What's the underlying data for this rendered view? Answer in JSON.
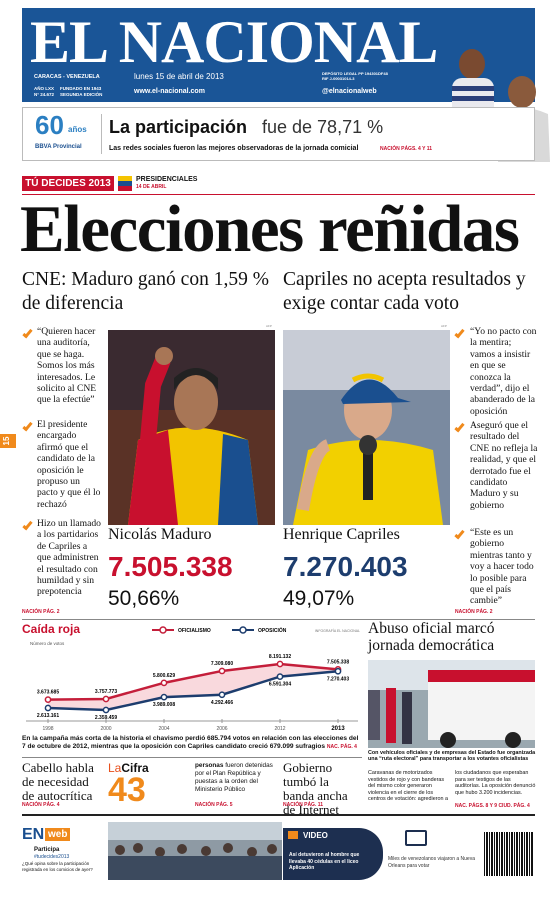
{
  "masthead": {
    "title": "EL NACIONAL",
    "city": "CARACAS - VENEZUELA",
    "date": "lunes 15 de abril de 2013",
    "website": "www.el-nacional.com",
    "twitter": "@elnacionalweb",
    "year_info": "AÑO LXX",
    "issue": "N° 24.672",
    "founded": "FUNDADO EN 1943",
    "edition": "SEGUNDA EDICIÓN",
    "legal": "DEPÓSITO LEGAL PP 194301DF48",
    "rif": "RIF J-00031014-3"
  },
  "banner": {
    "anniversary": "60",
    "anniversary_word": "años",
    "sponsor": "BBVA Provincial",
    "headline_bold": "La participación",
    "headline_rest": "fue de 78,71 %",
    "subhead": "Las redes sociales fueron las mejores observadoras de la jornada comicial",
    "ref": "NACIÓN PÁGS. 4 Y 11"
  },
  "section_tag": {
    "label": "TÚ DECIDES 2013",
    "kicker": "PRESIDENCIALES",
    "date": "14 DE ABRIL"
  },
  "side_tab": "15",
  "headline": "Elecciones reñidas",
  "photo_credit": "AFP",
  "left": {
    "subhead": "CNE: Maduro ganó con 1,59 % de diferencia",
    "bullets": [
      "“Quieren hacer una auditoría, que se haga. Somos los más interesados. Le solicito al CNE que la efectúe”",
      "El presidente encargado afirmó que el candidato de la oposición le propuso un pacto y que él lo rechazó",
      "Hizo un llamado a los partidarios de Capriles a que administren el resultado con humildad y sin prepotencia"
    ],
    "ref": "NACIÓN PÁG. 2",
    "candidate": "Nicolás Maduro",
    "votes": "7.505.338",
    "percent": "50,66%"
  },
  "right": {
    "subhead": "Capriles no acepta resultados y exige contar cada voto",
    "bullets": [
      "“Yo no pacto con la mentira; vamos a insistir en que se conozca la verdad”, dijo el abanderado de la oposición",
      "Aseguró que el resultado del CNE no refleja la realidad, y que el derrotado fue el candidato Maduro y su gobierno",
      "“Este es un gobierno mientras tanto y voy a hacer todo lo posible para que el país cambie”"
    ],
    "ref": "NACIÓN PÁG. 2",
    "candidate": "Henrique Capriles",
    "votes": "7.270.403",
    "percent": "49,07%"
  },
  "chart_data": {
    "type": "line",
    "title": "Caída roja",
    "y_label": "Número de votos",
    "credit": "INFOGRAFÍA EL NACIONAL",
    "categories": [
      "1998",
      "2000",
      "2004",
      "2006",
      "2012",
      "2013"
    ],
    "series": [
      {
        "name": "OFICIALISMO",
        "color": "#c41e3a",
        "values": [
          3673685,
          3757773,
          5800629,
          7309080,
          8191132,
          7505338
        ],
        "value_labels": [
          "3.673.685",
          "3.757.773",
          "5.800.629",
          "7.309.080",
          "8.191.132",
          "7.505.338"
        ]
      },
      {
        "name": "OPOSICIÓN",
        "color": "#1d3d6e",
        "values": [
          2613161,
          2359459,
          3989008,
          4292466,
          6591304,
          7270403
        ],
        "value_labels": [
          "2.613.161",
          "2.359.459",
          "3.989.008",
          "4.292.466",
          "6.591.304",
          "7.270.403"
        ]
      }
    ],
    "caption": "En la campaña más corta de la historia el chavismo perdió 685.794 votos en relación con las elecciones del 7 de octubre de 2012, mientras que la oposición con Capriles candidato creció 679.099 sufragios",
    "caption_ref": "NAC. PÁG. 4"
  },
  "abuse": {
    "headline": "Abuso oficial marcó jornada democrática",
    "caption": "Con vehículos oficiales y de empresas del Estado fue organizada una “ruta electoral” para transportar a los votantes oficialistas",
    "body": "Caravanas de motorizados vestidos de rojo y con banderas del mismo color generaron violencia en el cierre de los centros de votación: agredieron a los ciudadanos que esperaban para ser testigos de las auditorías. La oposición denunció que hubo 3.200 incidencias.",
    "ref": "NAC. PÁGS. 8 Y 9 CIUD. PÁG. 4"
  },
  "briefs": [
    {
      "headline": "Cabello habla de necesidad de autocrítica",
      "ref": "NACIÓN PÁG. 4"
    },
    {
      "headline": "Gobierno tumbó la banda ancha de Internet",
      "ref": "NACIÓN PÁG. 11"
    }
  ],
  "cifra": {
    "label_a": "La",
    "label_b": "Cifra",
    "number": "43",
    "lead": "personas",
    "text": "fueron detenidas por el Plan República y puestas a la orden del Ministerio Público",
    "ref": "NACIÓN PÁG. 5"
  },
  "footer": {
    "logo_a": "EN",
    "logo_b": "web",
    "participa": "Participa",
    "hashtag": "#tudecides2013",
    "question": "¿Qué opina sobre la participación registrada en los comicios de ayer?",
    "video_label": "VIDEO",
    "video_text": "Así detuvieron al hombre que llevaba 40 cédulas en el liceo Aplicación",
    "gallery_text": "Miles de venezolanos viajaron a Nueva Orleans para votar"
  }
}
